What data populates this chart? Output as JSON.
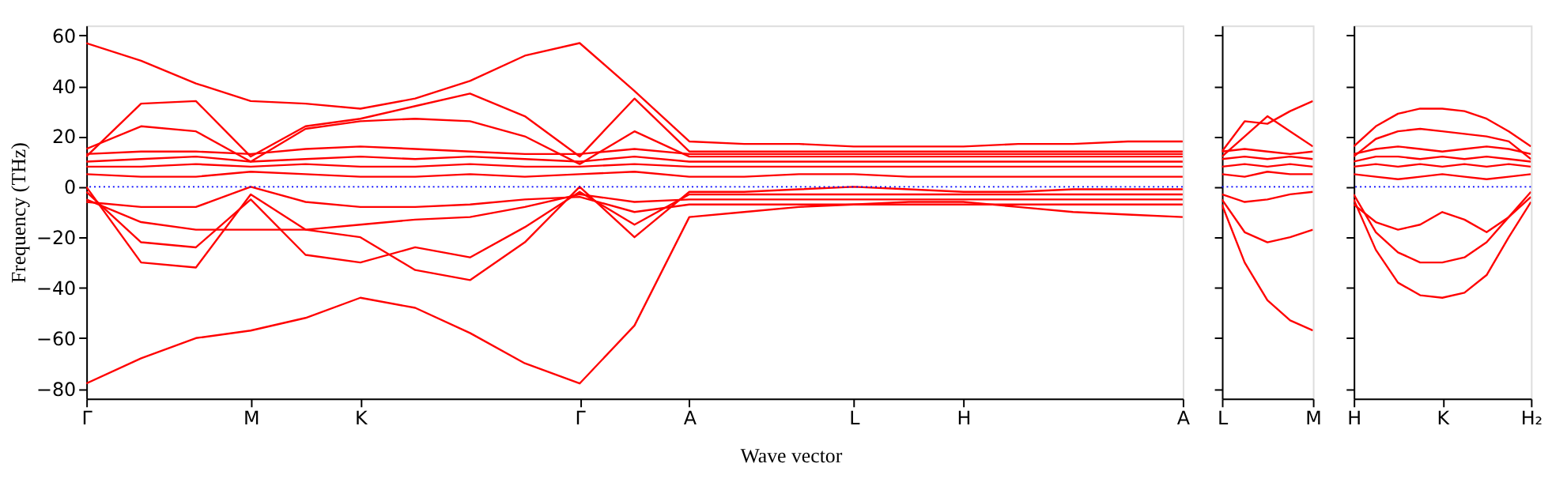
{
  "chart_data": [
    {
      "type": "line",
      "ylabel": "Frequency (THz)",
      "xlabel": "Wave vector",
      "legend": false,
      "grid": false,
      "marker": "none",
      "line_style": "solid",
      "categories": [
        "Γ",
        null,
        null,
        "M",
        null,
        "K",
        null,
        null,
        null,
        "Γ",
        null,
        "A",
        null,
        null,
        "L",
        null,
        "H",
        null,
        null,
        null,
        "A"
      ],
      "ylim": [
        -84,
        64
      ],
      "yticks": [
        -80,
        -60,
        -40,
        -20,
        0,
        20,
        40,
        60
      ],
      "ref_lines": [
        {
          "axis": "y",
          "value": 0,
          "color": "#0000ff",
          "line_style": "dotted"
        }
      ],
      "series": [
        {
          "color": "#ff0000",
          "values": [
            57,
            50,
            41,
            34,
            33,
            31,
            35,
            42,
            52,
            57,
            38,
            18,
            17,
            17,
            16,
            16,
            16,
            17,
            17,
            18,
            18
          ]
        },
        {
          "color": "#ff0000",
          "values": [
            -78,
            -68,
            -60,
            -57,
            -52,
            -44,
            -48,
            -58,
            -70,
            -78,
            -55,
            -12,
            -10,
            -8,
            -7,
            -6,
            -6,
            -8,
            -10,
            -11,
            -12
          ]
        },
        {
          "color": "#ff0000",
          "values": [
            12,
            33,
            34,
            12,
            24,
            27,
            32,
            37,
            28,
            12,
            35,
            14,
            14,
            14,
            14,
            14,
            14,
            14,
            14,
            14,
            14
          ]
        },
        {
          "color": "#ff0000",
          "values": [
            15,
            24,
            22,
            10,
            23,
            26,
            27,
            26,
            20,
            9,
            22,
            12,
            12,
            12,
            12,
            12,
            12,
            12,
            12,
            12,
            12
          ]
        },
        {
          "color": "#ff0000",
          "values": [
            0,
            -30,
            -32,
            -3,
            -17,
            -20,
            -33,
            -37,
            -22,
            0,
            -20,
            -2,
            -2,
            -1,
            0,
            -1,
            -2,
            -2,
            -1,
            -1,
            -1
          ]
        },
        {
          "color": "#ff0000",
          "values": [
            -2,
            -22,
            -24,
            -5,
            -27,
            -30,
            -24,
            -28,
            -16,
            -2,
            -15,
            -3,
            -3,
            -3,
            -3,
            -3,
            -3,
            -3,
            -3,
            -3,
            -3
          ]
        },
        {
          "color": "#ff0000",
          "values": [
            -5,
            -14,
            -17,
            -17,
            -17,
            -15,
            -13,
            -12,
            -8,
            -3,
            -6,
            -5,
            -5,
            -5,
            -5,
            -5,
            -5,
            -5,
            -5,
            -5,
            -5
          ]
        },
        {
          "color": "#ff0000",
          "values": [
            -6,
            -8,
            -8,
            0,
            -6,
            -8,
            -8,
            -7,
            -5,
            -4,
            -10,
            -7,
            -7,
            -7,
            -7,
            -7,
            -7,
            -7,
            -7,
            -7,
            -7
          ]
        },
        {
          "color": "#ff0000",
          "values": [
            5,
            4,
            4,
            6,
            5,
            4,
            4,
            5,
            4,
            5,
            6,
            4,
            4,
            5,
            5,
            4,
            4,
            4,
            4,
            4,
            4
          ]
        },
        {
          "color": "#ff0000",
          "values": [
            8,
            8,
            9,
            8,
            9,
            8,
            8,
            9,
            8,
            8,
            9,
            8,
            8,
            8,
            8,
            8,
            8,
            8,
            8,
            8,
            8
          ]
        },
        {
          "color": "#ff0000",
          "values": [
            10,
            11,
            12,
            10,
            11,
            12,
            11,
            12,
            11,
            10,
            12,
            10,
            10,
            10,
            10,
            10,
            10,
            10,
            10,
            10,
            10
          ]
        },
        {
          "color": "#ff0000",
          "values": [
            13,
            14,
            14,
            13,
            15,
            16,
            15,
            14,
            13,
            13,
            15,
            13,
            13,
            13,
            13,
            13,
            13,
            13,
            13,
            13,
            13
          ]
        }
      ]
    },
    {
      "type": "line",
      "legend": false,
      "grid": false,
      "marker": "none",
      "line_style": "solid",
      "tick_labels": "x",
      "categories": [
        "L",
        null,
        null,
        null,
        "M"
      ],
      "ylim": [
        -84,
        64
      ],
      "yticks": [
        -80,
        -60,
        -40,
        -20,
        0,
        20,
        40,
        60
      ],
      "ref_lines": [
        {
          "axis": "y",
          "value": 0,
          "color": "#0000ff",
          "line_style": "dotted"
        }
      ],
      "series": [
        {
          "color": "#ff0000",
          "values": [
            14,
            26,
            25,
            30,
            34
          ]
        },
        {
          "color": "#ff0000",
          "values": [
            12,
            20,
            28,
            22,
            16
          ]
        },
        {
          "color": "#ff0000",
          "values": [
            -5,
            -18,
            -22,
            -20,
            -17
          ]
        },
        {
          "color": "#ff0000",
          "values": [
            -7,
            -30,
            -45,
            -53,
            -57
          ]
        },
        {
          "color": "#ff0000",
          "values": [
            -3,
            -6,
            -5,
            -3,
            -2
          ]
        },
        {
          "color": "#ff0000",
          "values": [
            5,
            4,
            6,
            5,
            5
          ]
        },
        {
          "color": "#ff0000",
          "values": [
            8,
            9,
            8,
            9,
            8
          ]
        },
        {
          "color": "#ff0000",
          "values": [
            11,
            12,
            11,
            12,
            11
          ]
        },
        {
          "color": "#ff0000",
          "values": [
            14,
            15,
            14,
            13,
            14
          ]
        }
      ]
    },
    {
      "type": "line",
      "legend": false,
      "grid": false,
      "marker": "none",
      "line_style": "solid",
      "tick_labels": "x",
      "categories": [
        "H",
        null,
        null,
        null,
        "K",
        null,
        null,
        null,
        "H₂"
      ],
      "ylim": [
        -84,
        64
      ],
      "yticks": [
        -80,
        -60,
        -40,
        -20,
        0,
        20,
        40,
        60
      ],
      "ref_lines": [
        {
          "axis": "y",
          "value": 0,
          "color": "#0000ff",
          "line_style": "dotted"
        }
      ],
      "series": [
        {
          "color": "#ff0000",
          "values": [
            16,
            24,
            29,
            31,
            31,
            30,
            27,
            22,
            16
          ]
        },
        {
          "color": "#ff0000",
          "values": [
            12,
            19,
            22,
            23,
            22,
            21,
            20,
            18,
            11
          ]
        },
        {
          "color": "#ff0000",
          "values": [
            -5,
            -25,
            -38,
            -43,
            -44,
            -42,
            -35,
            -20,
            -6
          ]
        },
        {
          "color": "#ff0000",
          "values": [
            -3,
            -18,
            -26,
            -30,
            -30,
            -28,
            -22,
            -12,
            -2
          ]
        },
        {
          "color": "#ff0000",
          "values": [
            -7,
            -14,
            -17,
            -15,
            -10,
            -13,
            -18,
            -12,
            -4
          ]
        },
        {
          "color": "#ff0000",
          "values": [
            5,
            4,
            3,
            4,
            5,
            4,
            3,
            4,
            5
          ]
        },
        {
          "color": "#ff0000",
          "values": [
            8,
            9,
            8,
            9,
            8,
            9,
            8,
            9,
            8
          ]
        },
        {
          "color": "#ff0000",
          "values": [
            10,
            12,
            12,
            11,
            12,
            11,
            12,
            11,
            10
          ]
        },
        {
          "color": "#ff0000",
          "values": [
            13,
            15,
            16,
            15,
            14,
            15,
            16,
            15,
            13
          ]
        }
      ]
    }
  ]
}
